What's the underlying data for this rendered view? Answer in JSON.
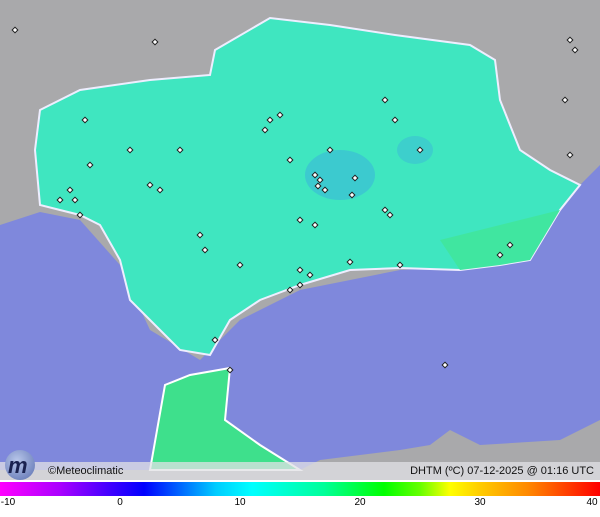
{
  "map": {
    "credit": "©Meteoclimatic",
    "title": "DHTM (ºC) 07-12-2025 @ 01:16 UTC",
    "colors": {
      "sea": "#7f88dc",
      "land_outside": "#a9a9ab",
      "region": "#3fe6c0",
      "morocco": "#3ee08c"
    }
  },
  "colorbar": {
    "min": -10,
    "max": 40,
    "ticks": [
      "-10",
      "0",
      "10",
      "20",
      "30",
      "40"
    ]
  },
  "logo": {
    "text": "M"
  }
}
